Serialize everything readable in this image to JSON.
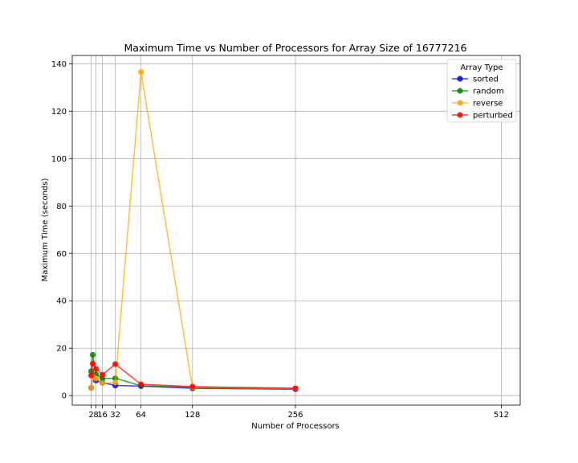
{
  "chart_data": {
    "type": "line",
    "title": "Maximum Time vs Number of Processors for Array Size of 16777216",
    "xlabel": "Number of Processors",
    "ylabel": "Maximum Time (seconds)",
    "x": [
      2,
      4,
      8,
      16,
      32,
      64,
      128,
      256,
      512
    ],
    "xticks": [
      2,
      8,
      16,
      32,
      64,
      128,
      256,
      512
    ],
    "xtick_labels": [
      "2",
      "8",
      "16",
      "32",
      "64",
      "128",
      "256",
      "512"
    ],
    "xlim": [
      -21.5,
      535.5
    ],
    "yticks": [
      0,
      20,
      40,
      60,
      80,
      100,
      120,
      140
    ],
    "ylim": [
      -4,
      143.5
    ],
    "grid": true,
    "legend": {
      "title": "Array Type",
      "position": "top-right"
    },
    "series": [
      {
        "name": "sorted",
        "color": "#0000ff",
        "values": [
          3.3,
          8.5,
          6.4,
          5.5,
          4.3,
          4.0,
          3.1,
          2.7,
          null
        ]
      },
      {
        "name": "random",
        "color": "#008000",
        "values": [
          10.3,
          17.2,
          9.0,
          7.2,
          7.3,
          4.2,
          3.5,
          2.9,
          null
        ]
      },
      {
        "name": "reverse",
        "color": "#ffa500",
        "values": [
          3.3,
          8.2,
          7.2,
          5.3,
          5.5,
          136.5,
          3.5,
          3.0,
          null
        ]
      },
      {
        "name": "perturbed",
        "color": "#ff0000",
        "values": [
          8.5,
          13.5,
          11.3,
          8.8,
          13.3,
          4.8,
          3.8,
          3.1,
          null
        ]
      }
    ]
  }
}
